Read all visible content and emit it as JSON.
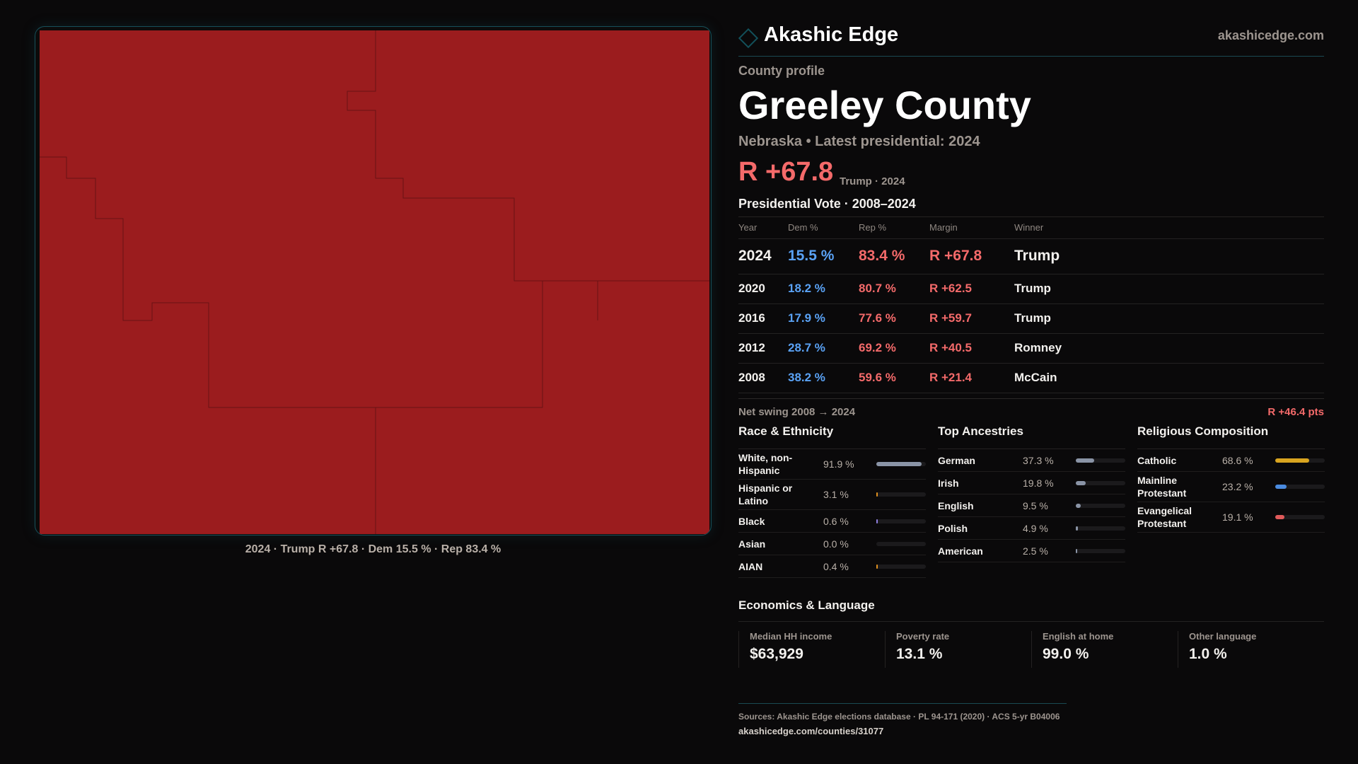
{
  "map": {
    "fill": "#9b1c1e",
    "caption": "2024 · Trump R +67.8 · Dem 15.5 % · Rep 83.4 %"
  },
  "header": {
    "brand": "Akashic Edge",
    "site": "akashicedge.com"
  },
  "profile": {
    "eyebrow": "County profile",
    "title": "Greeley County",
    "subtitle": "Nebraska • Latest presidential: 2024",
    "margin": "R +67.8",
    "margin_note": "Trump · 2024"
  },
  "votes": {
    "title": "Presidential Vote · 2008–2024",
    "headers": [
      "Year",
      "Dem %",
      "Rep %",
      "Margin",
      "Winner"
    ],
    "rows": [
      {
        "year": "2024",
        "dem": "15.5 %",
        "rep": "83.4 %",
        "margin": "R +67.8",
        "winner": "Trump"
      },
      {
        "year": "2020",
        "dem": "18.2 %",
        "rep": "80.7 %",
        "margin": "R +62.5",
        "winner": "Trump"
      },
      {
        "year": "2016",
        "dem": "17.9 %",
        "rep": "77.6 %",
        "margin": "R +59.7",
        "winner": "Trump"
      },
      {
        "year": "2012",
        "dem": "28.7 %",
        "rep": "69.2 %",
        "margin": "R +40.5",
        "winner": "Romney"
      },
      {
        "year": "2008",
        "dem": "38.2 %",
        "rep": "59.6 %",
        "margin": "R +21.4",
        "winner": "McCain"
      }
    ],
    "swing_label": "Net swing 2008 → 2024",
    "swing_value": "R +46.4 pts"
  },
  "demographics": [
    {
      "title": "Race & Ethnicity",
      "items": [
        {
          "label": "White, non-Hispanic",
          "value": "91.9 %",
          "pct": 91.9,
          "color": "#8a94a6"
        },
        {
          "label": "Hispanic or Latino",
          "value": "3.1 %",
          "pct": 3.1,
          "color": "#e0901f"
        },
        {
          "label": "Black",
          "value": "0.6 %",
          "pct": 0.6,
          "color": "#8f7fe0"
        },
        {
          "label": "Asian",
          "value": "0.0 %",
          "pct": 0,
          "color": "#4fb0a0"
        },
        {
          "label": "AIAN",
          "value": "0.4 %",
          "pct": 0.4,
          "color": "#e0901f"
        }
      ]
    },
    {
      "title": "Top Ancestries",
      "items": [
        {
          "label": "German",
          "value": "37.3 %",
          "pct": 37.3,
          "color": "#8a94a6"
        },
        {
          "label": "Irish",
          "value": "19.8 %",
          "pct": 19.8,
          "color": "#8a94a6"
        },
        {
          "label": "English",
          "value": "9.5 %",
          "pct": 9.5,
          "color": "#8a94a6"
        },
        {
          "label": "Polish",
          "value": "4.9 %",
          "pct": 4.9,
          "color": "#8a94a6"
        },
        {
          "label": "American",
          "value": "2.5 %",
          "pct": 2.5,
          "color": "#8a94a6"
        }
      ]
    },
    {
      "title": "Religious Composition",
      "items": [
        {
          "label": "Catholic",
          "value": "68.6 %",
          "pct": 68.6,
          "color": "#d9a520"
        },
        {
          "label": "Mainline Protestant",
          "value": "23.2 %",
          "pct": 23.2,
          "color": "#4a8be0"
        },
        {
          "label": "Evangelical Protestant",
          "value": "19.1 %",
          "pct": 19.1,
          "color": "#e05a5a"
        }
      ]
    }
  ],
  "economics": {
    "title": "Economics & Language",
    "stats": [
      {
        "label": "Median HH income",
        "value": "$63,929"
      },
      {
        "label": "Poverty rate",
        "value": "13.1 %"
      },
      {
        "label": "English at home",
        "value": "99.0 %"
      },
      {
        "label": "Other language",
        "value": "1.0 %"
      }
    ]
  },
  "footer": {
    "sources": "Sources: Akashic Edge elections database · PL 94-171 (2020) · ACS 5-yr B04006",
    "url": "akashicedge.com/counties/31077"
  }
}
